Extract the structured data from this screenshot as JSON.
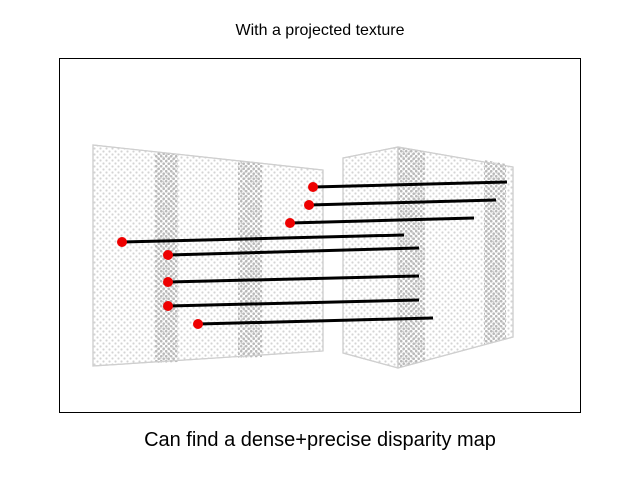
{
  "title": "With a projected texture",
  "caption": "Can find a dense+precise disparity map",
  "colors": {
    "point": "#ee0000",
    "line": "#000000",
    "texture_light": "#d4d4d4",
    "texture_dark": "#b9b9b9",
    "panel_edge": "#cfcfcf"
  }
}
